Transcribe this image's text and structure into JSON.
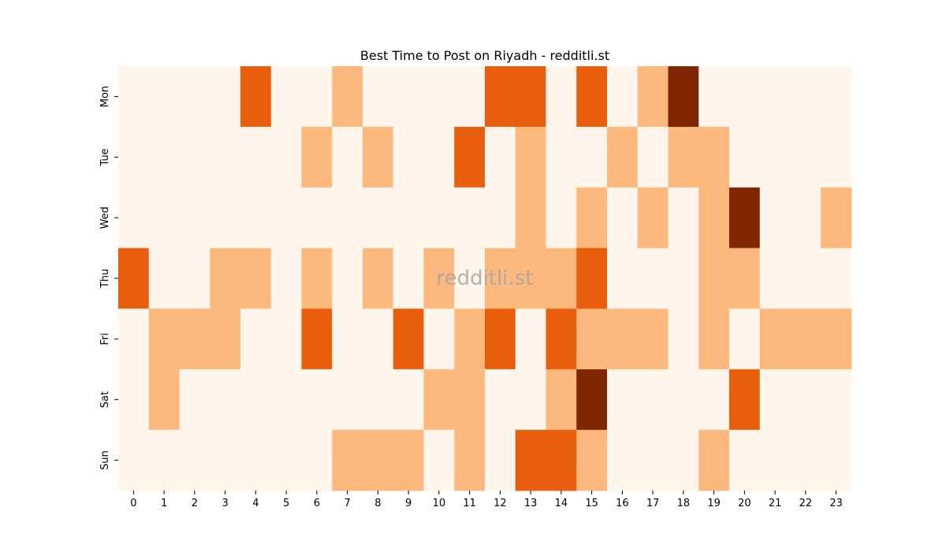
{
  "chart_data": {
    "type": "heatmap",
    "title": "Best Time to Post on Riyadh - redditli.st",
    "watermark": "redditli.st",
    "xlabel": "",
    "ylabel": "",
    "x_labels": [
      "0",
      "1",
      "2",
      "3",
      "4",
      "5",
      "6",
      "7",
      "8",
      "9",
      "10",
      "11",
      "12",
      "13",
      "14",
      "15",
      "16",
      "17",
      "18",
      "19",
      "20",
      "21",
      "22",
      "23"
    ],
    "y_labels": [
      "Mon",
      "Tue",
      "Wed",
      "Thu",
      "Fri",
      "Sat",
      "Sun"
    ],
    "values": [
      [
        0,
        0,
        0,
        0,
        2,
        0,
        0,
        1,
        0,
        0,
        0,
        0,
        2,
        2,
        0,
        2,
        0,
        1,
        3,
        0,
        0,
        0,
        0,
        0
      ],
      [
        0,
        0,
        0,
        0,
        0,
        0,
        1,
        0,
        1,
        0,
        0,
        2,
        0,
        1,
        0,
        0,
        1,
        0,
        1,
        1,
        0,
        0,
        0,
        0
      ],
      [
        0,
        0,
        0,
        0,
        0,
        0,
        0,
        0,
        0,
        0,
        0,
        0,
        0,
        1,
        0,
        1,
        0,
        1,
        0,
        1,
        3,
        0,
        0,
        1
      ],
      [
        2,
        0,
        0,
        1,
        1,
        0,
        1,
        0,
        1,
        0,
        1,
        0,
        1,
        1,
        1,
        2,
        0,
        0,
        0,
        1,
        1,
        0,
        0,
        0
      ],
      [
        0,
        1,
        1,
        1,
        0,
        0,
        2,
        0,
        0,
        2,
        0,
        1,
        2,
        0,
        2,
        1,
        1,
        1,
        0,
        1,
        0,
        1,
        1,
        1
      ],
      [
        0,
        1,
        0,
        0,
        0,
        0,
        0,
        0,
        0,
        0,
        1,
        1,
        0,
        0,
        1,
        3,
        0,
        0,
        0,
        0,
        2,
        0,
        0,
        0
      ],
      [
        0,
        0,
        0,
        0,
        0,
        0,
        0,
        1,
        1,
        1,
        0,
        1,
        0,
        2,
        2,
        1,
        0,
        0,
        0,
        1,
        0,
        0,
        0,
        0
      ]
    ],
    "color_scale": [
      "#fff5eb",
      "#fdb97d",
      "#e95e0d",
      "#7f2704"
    ],
    "colorbar": false,
    "grid": false
  }
}
